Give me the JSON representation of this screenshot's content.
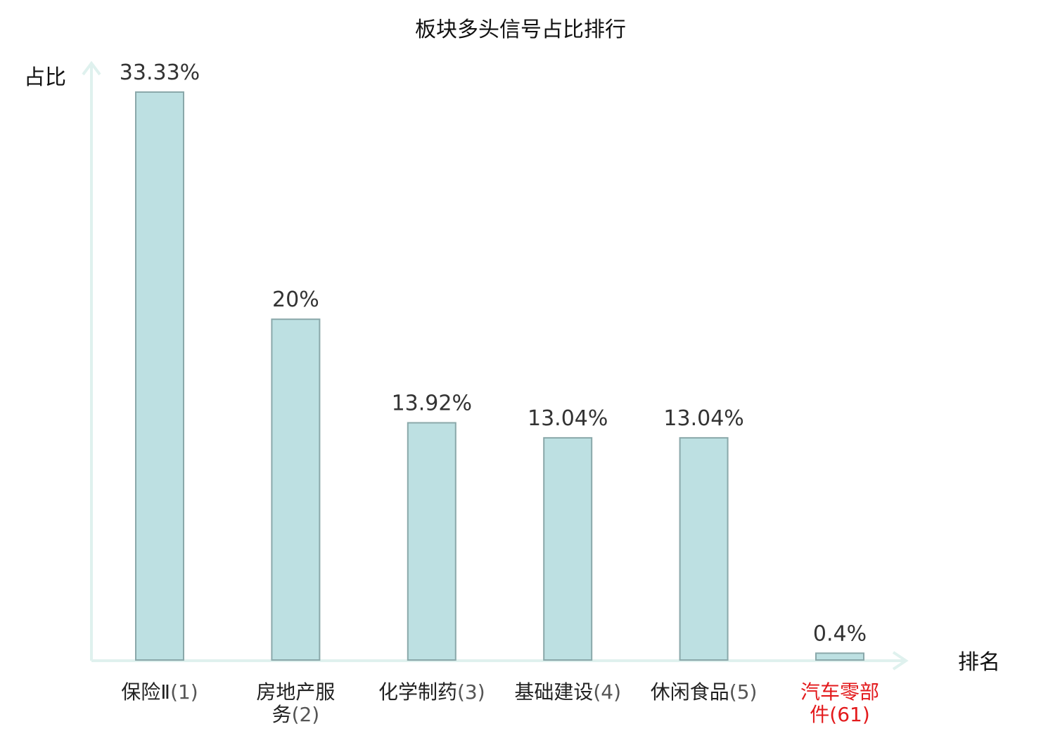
{
  "chart_data": {
    "type": "bar",
    "title": "板块多头信号占比排行",
    "ylabel": "占比",
    "xlabel": "排名",
    "ylim": [
      0,
      35
    ],
    "grid": false,
    "legend": "none",
    "categories": [
      {
        "name": [
          "保险Ⅱ"
        ],
        "rank": "(1)",
        "highlight": false
      },
      {
        "name": [
          "房地产服",
          "务"
        ],
        "rank": "(2)",
        "highlight": false
      },
      {
        "name": [
          "化学制药"
        ],
        "rank": "(3)",
        "highlight": false
      },
      {
        "name": [
          "基础建设"
        ],
        "rank": "(4)",
        "highlight": false
      },
      {
        "name": [
          "休闲食品"
        ],
        "rank": "(5)",
        "highlight": false
      },
      {
        "name": [
          "汽车零部",
          "件"
        ],
        "rank": "(61)",
        "highlight": true
      }
    ],
    "values": [
      33.33,
      20,
      13.92,
      13.04,
      13.04,
      0.4
    ],
    "value_labels": [
      "33.33%",
      "20%",
      "13.92%",
      "13.04%",
      "13.04%",
      "0.4%"
    ],
    "colors": {
      "bar_fill": "#bde0e2",
      "bar_stroke": "#8aa8aa",
      "axis": "#dff1ee",
      "label_text": "#222222",
      "highlight_text": "#e31a1c",
      "rank_text": "#555555"
    }
  }
}
